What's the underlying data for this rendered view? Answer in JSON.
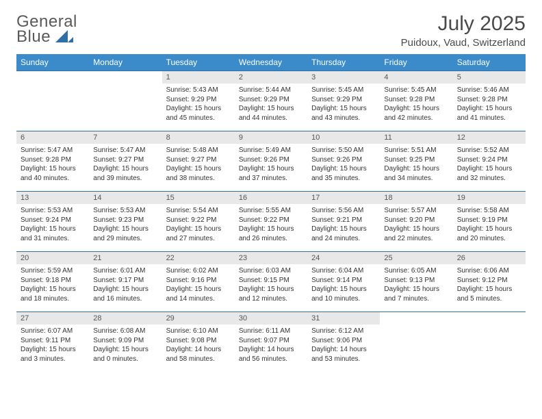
{
  "brand": {
    "line1": "General",
    "line2": "Blue",
    "logo_color": "#2f6fa5"
  },
  "title": "July 2025",
  "location": "Puidoux, Vaud, Switzerland",
  "colors": {
    "header_bg": "#3b8bca",
    "header_text": "#ffffff",
    "daynum_bg": "#e8e8e8",
    "border": "#2f6fa5",
    "body_text": "#333333"
  },
  "days_of_week": [
    "Sunday",
    "Monday",
    "Tuesday",
    "Wednesday",
    "Thursday",
    "Friday",
    "Saturday"
  ],
  "weeks": [
    [
      {
        "n": "",
        "sunrise": "",
        "sunset": "",
        "daylight": ""
      },
      {
        "n": "",
        "sunrise": "",
        "sunset": "",
        "daylight": ""
      },
      {
        "n": "1",
        "sunrise": "Sunrise: 5:43 AM",
        "sunset": "Sunset: 9:29 PM",
        "daylight": "Daylight: 15 hours and 45 minutes."
      },
      {
        "n": "2",
        "sunrise": "Sunrise: 5:44 AM",
        "sunset": "Sunset: 9:29 PM",
        "daylight": "Daylight: 15 hours and 44 minutes."
      },
      {
        "n": "3",
        "sunrise": "Sunrise: 5:45 AM",
        "sunset": "Sunset: 9:29 PM",
        "daylight": "Daylight: 15 hours and 43 minutes."
      },
      {
        "n": "4",
        "sunrise": "Sunrise: 5:45 AM",
        "sunset": "Sunset: 9:28 PM",
        "daylight": "Daylight: 15 hours and 42 minutes."
      },
      {
        "n": "5",
        "sunrise": "Sunrise: 5:46 AM",
        "sunset": "Sunset: 9:28 PM",
        "daylight": "Daylight: 15 hours and 41 minutes."
      }
    ],
    [
      {
        "n": "6",
        "sunrise": "Sunrise: 5:47 AM",
        "sunset": "Sunset: 9:28 PM",
        "daylight": "Daylight: 15 hours and 40 minutes."
      },
      {
        "n": "7",
        "sunrise": "Sunrise: 5:47 AM",
        "sunset": "Sunset: 9:27 PM",
        "daylight": "Daylight: 15 hours and 39 minutes."
      },
      {
        "n": "8",
        "sunrise": "Sunrise: 5:48 AM",
        "sunset": "Sunset: 9:27 PM",
        "daylight": "Daylight: 15 hours and 38 minutes."
      },
      {
        "n": "9",
        "sunrise": "Sunrise: 5:49 AM",
        "sunset": "Sunset: 9:26 PM",
        "daylight": "Daylight: 15 hours and 37 minutes."
      },
      {
        "n": "10",
        "sunrise": "Sunrise: 5:50 AM",
        "sunset": "Sunset: 9:26 PM",
        "daylight": "Daylight: 15 hours and 35 minutes."
      },
      {
        "n": "11",
        "sunrise": "Sunrise: 5:51 AM",
        "sunset": "Sunset: 9:25 PM",
        "daylight": "Daylight: 15 hours and 34 minutes."
      },
      {
        "n": "12",
        "sunrise": "Sunrise: 5:52 AM",
        "sunset": "Sunset: 9:24 PM",
        "daylight": "Daylight: 15 hours and 32 minutes."
      }
    ],
    [
      {
        "n": "13",
        "sunrise": "Sunrise: 5:53 AM",
        "sunset": "Sunset: 9:24 PM",
        "daylight": "Daylight: 15 hours and 31 minutes."
      },
      {
        "n": "14",
        "sunrise": "Sunrise: 5:53 AM",
        "sunset": "Sunset: 9:23 PM",
        "daylight": "Daylight: 15 hours and 29 minutes."
      },
      {
        "n": "15",
        "sunrise": "Sunrise: 5:54 AM",
        "sunset": "Sunset: 9:22 PM",
        "daylight": "Daylight: 15 hours and 27 minutes."
      },
      {
        "n": "16",
        "sunrise": "Sunrise: 5:55 AM",
        "sunset": "Sunset: 9:22 PM",
        "daylight": "Daylight: 15 hours and 26 minutes."
      },
      {
        "n": "17",
        "sunrise": "Sunrise: 5:56 AM",
        "sunset": "Sunset: 9:21 PM",
        "daylight": "Daylight: 15 hours and 24 minutes."
      },
      {
        "n": "18",
        "sunrise": "Sunrise: 5:57 AM",
        "sunset": "Sunset: 9:20 PM",
        "daylight": "Daylight: 15 hours and 22 minutes."
      },
      {
        "n": "19",
        "sunrise": "Sunrise: 5:58 AM",
        "sunset": "Sunset: 9:19 PM",
        "daylight": "Daylight: 15 hours and 20 minutes."
      }
    ],
    [
      {
        "n": "20",
        "sunrise": "Sunrise: 5:59 AM",
        "sunset": "Sunset: 9:18 PM",
        "daylight": "Daylight: 15 hours and 18 minutes."
      },
      {
        "n": "21",
        "sunrise": "Sunrise: 6:01 AM",
        "sunset": "Sunset: 9:17 PM",
        "daylight": "Daylight: 15 hours and 16 minutes."
      },
      {
        "n": "22",
        "sunrise": "Sunrise: 6:02 AM",
        "sunset": "Sunset: 9:16 PM",
        "daylight": "Daylight: 15 hours and 14 minutes."
      },
      {
        "n": "23",
        "sunrise": "Sunrise: 6:03 AM",
        "sunset": "Sunset: 9:15 PM",
        "daylight": "Daylight: 15 hours and 12 minutes."
      },
      {
        "n": "24",
        "sunrise": "Sunrise: 6:04 AM",
        "sunset": "Sunset: 9:14 PM",
        "daylight": "Daylight: 15 hours and 10 minutes."
      },
      {
        "n": "25",
        "sunrise": "Sunrise: 6:05 AM",
        "sunset": "Sunset: 9:13 PM",
        "daylight": "Daylight: 15 hours and 7 minutes."
      },
      {
        "n": "26",
        "sunrise": "Sunrise: 6:06 AM",
        "sunset": "Sunset: 9:12 PM",
        "daylight": "Daylight: 15 hours and 5 minutes."
      }
    ],
    [
      {
        "n": "27",
        "sunrise": "Sunrise: 6:07 AM",
        "sunset": "Sunset: 9:11 PM",
        "daylight": "Daylight: 15 hours and 3 minutes."
      },
      {
        "n": "28",
        "sunrise": "Sunrise: 6:08 AM",
        "sunset": "Sunset: 9:09 PM",
        "daylight": "Daylight: 15 hours and 0 minutes."
      },
      {
        "n": "29",
        "sunrise": "Sunrise: 6:10 AM",
        "sunset": "Sunset: 9:08 PM",
        "daylight": "Daylight: 14 hours and 58 minutes."
      },
      {
        "n": "30",
        "sunrise": "Sunrise: 6:11 AM",
        "sunset": "Sunset: 9:07 PM",
        "daylight": "Daylight: 14 hours and 56 minutes."
      },
      {
        "n": "31",
        "sunrise": "Sunrise: 6:12 AM",
        "sunset": "Sunset: 9:06 PM",
        "daylight": "Daylight: 14 hours and 53 minutes."
      },
      {
        "n": "",
        "sunrise": "",
        "sunset": "",
        "daylight": ""
      },
      {
        "n": "",
        "sunrise": "",
        "sunset": "",
        "daylight": ""
      }
    ]
  ]
}
